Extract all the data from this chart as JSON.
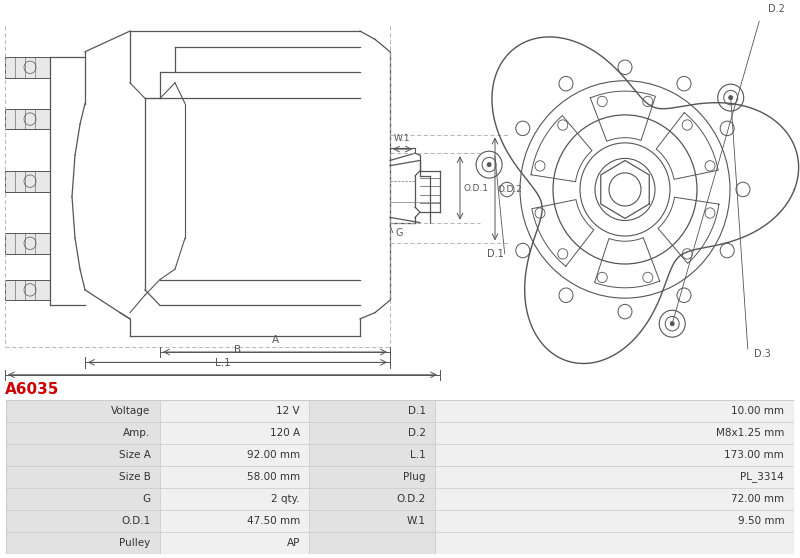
{
  "title_code": "A6035",
  "title_color": "#cc0000",
  "bg_color": "#ffffff",
  "table_row_bg_label": "#e2e2e2",
  "table_row_bg_value": "#f0f0f0",
  "table_border_color": "#cccccc",
  "table_data": [
    [
      "Voltage",
      "12 V",
      "D.1",
      "10.00 mm"
    ],
    [
      "Amp.",
      "120 A",
      "D.2",
      "M8x1.25 mm"
    ],
    [
      "Size A",
      "92.00 mm",
      "L.1",
      "173.00 mm"
    ],
    [
      "Size B",
      "58.00 mm",
      "Plug",
      "PL_3314"
    ],
    [
      "G",
      "2 qty.",
      "O.D.2",
      "72.00 mm"
    ],
    [
      "O.D.1",
      "47.50 mm",
      "W.1",
      "9.50 mm"
    ],
    [
      "Pulley",
      "AP",
      "",
      ""
    ]
  ],
  "line_color": "#555555",
  "dim_color": "#777777"
}
